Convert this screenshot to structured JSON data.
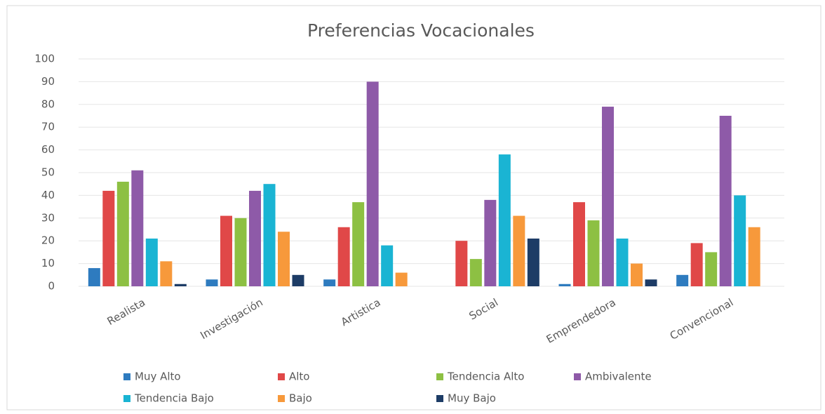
{
  "chart_data": {
    "type": "bar",
    "title": "Preferencias Vocacionales",
    "categories": [
      "Realista",
      "Investigación",
      "Artistica",
      "Social",
      "Emprendedora",
      "Convencional"
    ],
    "series": [
      {
        "name": "Muy Alto",
        "color": "#2e7bbf",
        "values": [
          8,
          3,
          3,
          0,
          1,
          5
        ]
      },
      {
        "name": "Alto",
        "color": "#e04848",
        "values": [
          42,
          31,
          26,
          20,
          37,
          19
        ]
      },
      {
        "name": "Tendencia Alto",
        "color": "#8dc043",
        "values": [
          46,
          30,
          37,
          12,
          29,
          15
        ]
      },
      {
        "name": "Ambivalente",
        "color": "#8e5aa8",
        "values": [
          51,
          42,
          90,
          38,
          79,
          75
        ]
      },
      {
        "name": "Tendencia Bajo",
        "color": "#1ab4d3",
        "values": [
          21,
          45,
          18,
          58,
          21,
          40
        ]
      },
      {
        "name": "Bajo",
        "color": "#f7993b",
        "values": [
          11,
          24,
          6,
          31,
          10,
          26
        ]
      },
      {
        "name": "Muy Bajo",
        "color": "#1d3c66",
        "values": [
          1,
          5,
          0,
          21,
          3,
          0
        ]
      }
    ],
    "ylim": [
      0,
      100
    ],
    "yticks": [
      0,
      10,
      20,
      30,
      40,
      50,
      60,
      70,
      80,
      90,
      100
    ],
    "grid": true,
    "legend": "bottom"
  }
}
